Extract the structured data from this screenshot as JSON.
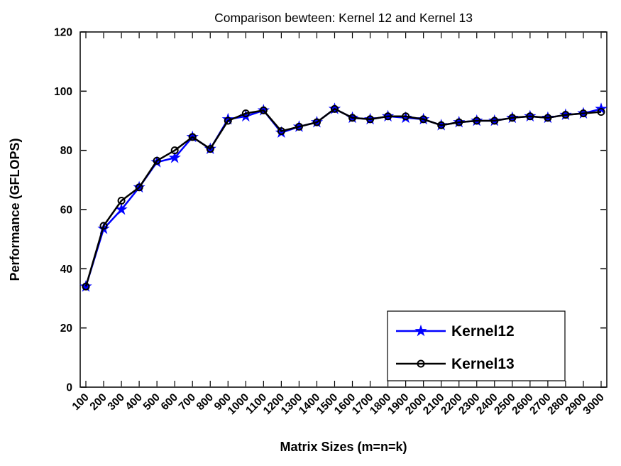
{
  "figure": {
    "background_color": "#ffffff",
    "axis_color": "#000000"
  },
  "chart_data": {
    "type": "line",
    "title": "Comparison bewteen: Kernel 12 and Kernel 13",
    "xlabel": "Matrix Sizes (m=n=k)",
    "ylabel": "Performance (GFLOPS)",
    "grid": false,
    "box": true,
    "legend_position": "bottom-right",
    "ylim": [
      0,
      120
    ],
    "yticks": [
      0,
      20,
      40,
      60,
      80,
      100,
      120
    ],
    "x": [
      100,
      200,
      300,
      400,
      500,
      600,
      700,
      800,
      900,
      1000,
      1100,
      1200,
      1300,
      1400,
      1500,
      1600,
      1700,
      1800,
      1900,
      2000,
      2100,
      2200,
      2300,
      2400,
      2500,
      2600,
      2700,
      2800,
      2900,
      3000
    ],
    "series": [
      {
        "name": "Kernel12",
        "color": "#0000ff",
        "marker": "star",
        "values": [
          34,
          53.5,
          60,
          67.5,
          76,
          77.5,
          84.5,
          80.5,
          90.5,
          91.5,
          93.5,
          86,
          88,
          89.5,
          94,
          91,
          90.5,
          91.5,
          91,
          90.5,
          88.5,
          89.5,
          90,
          90,
          91,
          91.5,
          91,
          92,
          92.5,
          94
        ]
      },
      {
        "name": "Kernel13",
        "color": "#000000",
        "marker": "circle",
        "values": [
          34,
          54.5,
          63,
          67.5,
          76.5,
          80,
          84.5,
          80.5,
          90,
          92.5,
          93.5,
          86.5,
          88,
          89.5,
          94,
          91,
          90.5,
          91.5,
          91.5,
          90.5,
          88.5,
          89.5,
          90,
          90,
          91,
          91.5,
          91,
          92,
          92.5,
          93
        ]
      }
    ]
  }
}
